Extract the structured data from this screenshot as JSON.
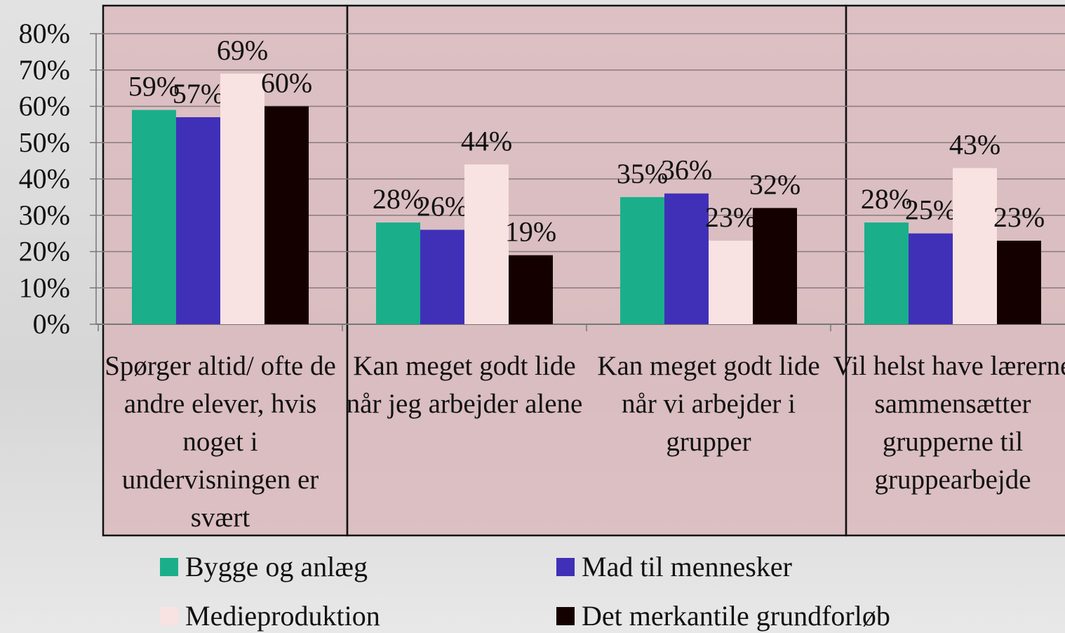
{
  "chart_data": {
    "type": "bar",
    "categories": [
      "Spørger altid/ ofte de andre elever, hvis noget i undervisningen er svært",
      "Kan meget godt lide når jeg arbejder alene",
      "Kan meget godt lide når vi arbejder i grupper",
      "Vil helst have lærerne sammensætter grupperne til gruppearbejde"
    ],
    "series": [
      {
        "name": "Bygge og anlæg",
        "color": "#1aaf8a",
        "values": [
          59,
          28,
          35,
          28
        ],
        "value_labels": [
          "59%",
          "28%",
          "35%",
          "28%"
        ]
      },
      {
        "name": "Mad til mennesker",
        "color": "#4030b8",
        "values": [
          57,
          26,
          36,
          25
        ],
        "value_labels": [
          "57%",
          "26%",
          "36%",
          "25%"
        ]
      },
      {
        "name": "Medieproduktion",
        "color": "#f9e2e2",
        "values": [
          69,
          44,
          23,
          43
        ],
        "value_labels": [
          "69%",
          "44%",
          "23%",
          "43%"
        ]
      },
      {
        "name": "Det merkantile grundforløb",
        "color": "#150000",
        "values": [
          60,
          19,
          32,
          23
        ],
        "value_labels": [
          "60%",
          "19%",
          "32%",
          "23%"
        ]
      }
    ],
    "ylim": [
      0,
      80
    ],
    "yticks": [
      {
        "value": 0,
        "label": "0%"
      },
      {
        "value": 10,
        "label": "10%"
      },
      {
        "value": 20,
        "label": "20%"
      },
      {
        "value": 30,
        "label": "30%"
      },
      {
        "value": 40,
        "label": "40%"
      },
      {
        "value": 50,
        "label": "50%"
      },
      {
        "value": 60,
        "label": "60%"
      },
      {
        "value": 70,
        "label": "70%"
      },
      {
        "value": 80,
        "label": "80%"
      }
    ],
    "grid": true,
    "legend": "bottom"
  }
}
